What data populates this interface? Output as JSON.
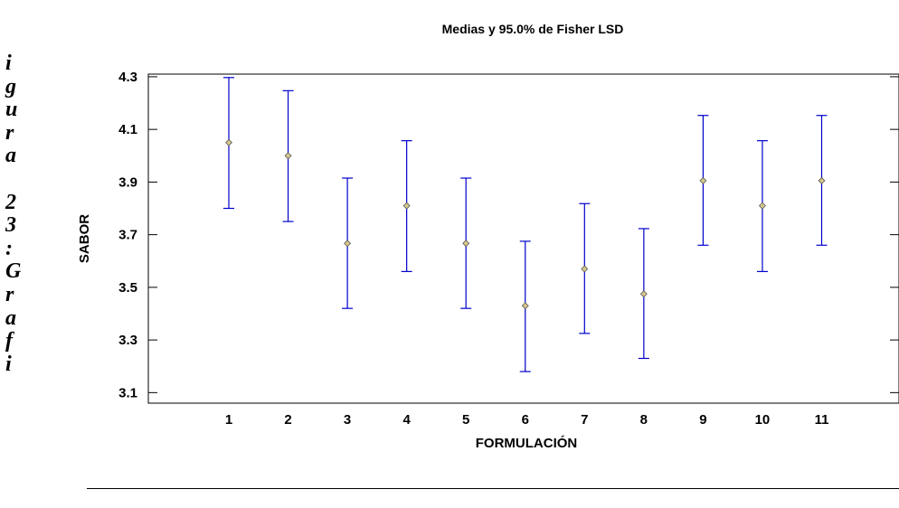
{
  "side_caption": [
    "i",
    "g",
    "u",
    "r",
    "a",
    "",
    "2",
    "3",
    ":",
    "G",
    "r",
    "a",
    "f",
    "i"
  ],
  "chart_data": {
    "type": "errorbar",
    "title": "Medias y 95.0% de Fisher LSD",
    "xlabel": "FORMULACIÓN",
    "ylabel": "SABOR",
    "categories": [
      "1",
      "2",
      "3",
      "4",
      "5",
      "6",
      "7",
      "8",
      "9",
      "10",
      "11"
    ],
    "y_ticks": [
      "3.1",
      "3.3",
      "3.5",
      "3.7",
      "3.9",
      "4.1",
      "4.3"
    ],
    "ylim": [
      3.06,
      4.31
    ],
    "means": [
      4.05,
      4.0,
      3.667,
      3.81,
      3.667,
      3.43,
      3.57,
      3.475,
      3.905,
      3.81,
      3.905
    ],
    "lower": [
      3.8,
      3.75,
      3.42,
      3.56,
      3.42,
      3.18,
      3.325,
      3.23,
      3.66,
      3.56,
      3.66
    ],
    "upper": [
      4.297,
      4.247,
      3.915,
      4.057,
      3.915,
      3.675,
      3.818,
      3.723,
      4.153,
      4.057,
      4.153
    ],
    "grid": false,
    "colors": {
      "interval": "#0000cc",
      "marker_fill": "#d8c88a",
      "marker_stroke": "#555555"
    }
  }
}
